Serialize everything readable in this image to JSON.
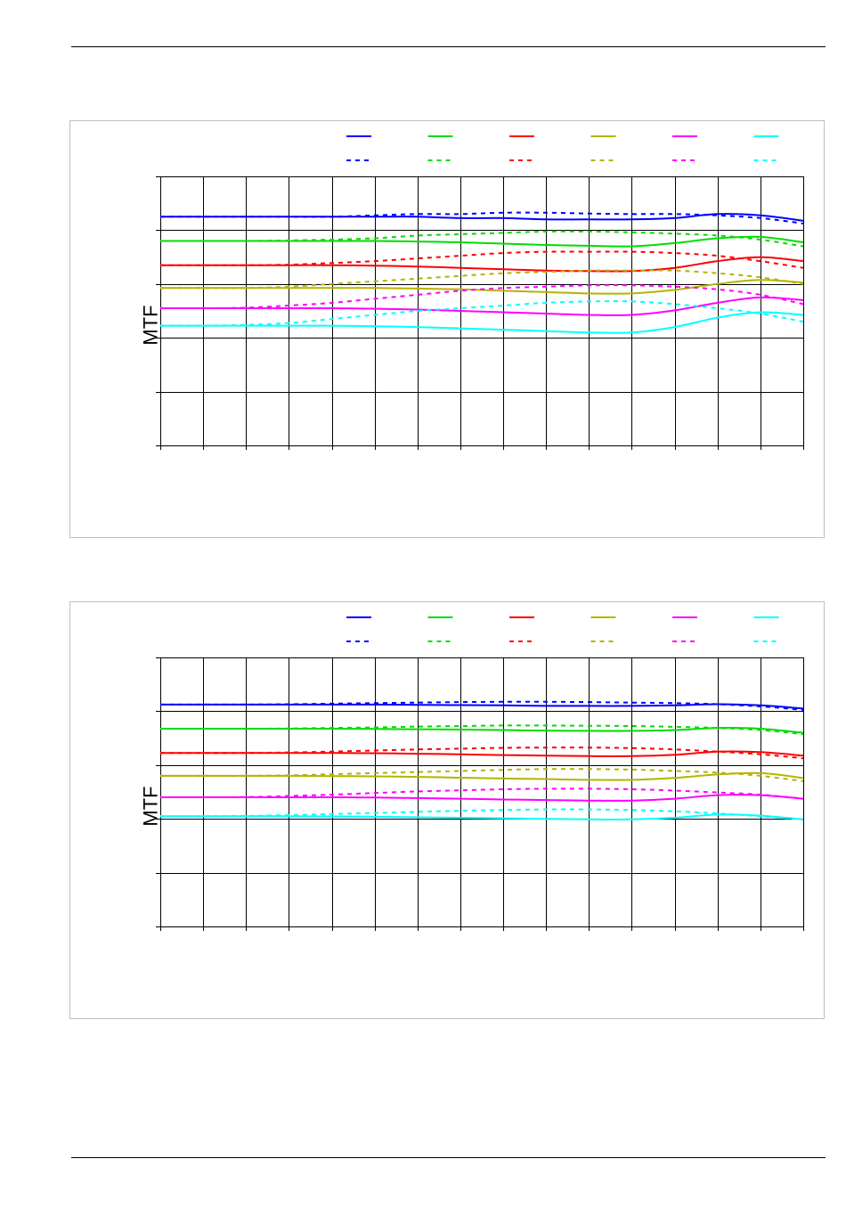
{
  "chart_data": [
    {
      "type": "line",
      "title": "",
      "xlabel": "",
      "ylabel": "MTF",
      "ylim": [
        0,
        1
      ],
      "grid": true,
      "legend_placement": "top",
      "x": [
        0,
        0.5,
        1,
        1.5,
        2,
        2.5,
        3,
        3.5,
        4,
        4.5,
        5,
        5.5,
        6,
        6.5,
        7,
        7.5
      ],
      "series": [
        {
          "color": "#0000ff",
          "dashed": false,
          "values": [
            0.85,
            0.85,
            0.85,
            0.85,
            0.85,
            0.85,
            0.85,
            0.845,
            0.845,
            0.84,
            0.84,
            0.84,
            0.845,
            0.86,
            0.855,
            0.835
          ]
        },
        {
          "color": "#0000ff",
          "dashed": true,
          "values": [
            0.85,
            0.85,
            0.85,
            0.85,
            0.85,
            0.855,
            0.86,
            0.86,
            0.865,
            0.865,
            0.862,
            0.86,
            0.86,
            0.855,
            0.845,
            0.825
          ]
        },
        {
          "color": "#00dd00",
          "dashed": false,
          "values": [
            0.76,
            0.76,
            0.76,
            0.76,
            0.76,
            0.76,
            0.758,
            0.755,
            0.75,
            0.745,
            0.742,
            0.74,
            0.752,
            0.77,
            0.775,
            0.755
          ]
        },
        {
          "color": "#00dd00",
          "dashed": true,
          "values": [
            0.76,
            0.76,
            0.76,
            0.762,
            0.765,
            0.77,
            0.78,
            0.785,
            0.79,
            0.795,
            0.795,
            0.792,
            0.787,
            0.78,
            0.765,
            0.74
          ]
        },
        {
          "color": "#ff0000",
          "dashed": false,
          "values": [
            0.67,
            0.67,
            0.67,
            0.67,
            0.67,
            0.668,
            0.665,
            0.66,
            0.655,
            0.65,
            0.648,
            0.648,
            0.66,
            0.685,
            0.7,
            0.685
          ]
        },
        {
          "color": "#ff0000",
          "dashed": true,
          "values": [
            0.67,
            0.67,
            0.67,
            0.672,
            0.678,
            0.685,
            0.695,
            0.705,
            0.715,
            0.72,
            0.72,
            0.72,
            0.715,
            0.705,
            0.685,
            0.66
          ]
        },
        {
          "color": "#b4b400",
          "dashed": false,
          "values": [
            0.585,
            0.585,
            0.585,
            0.585,
            0.585,
            0.585,
            0.583,
            0.58,
            0.575,
            0.57,
            0.565,
            0.565,
            0.578,
            0.6,
            0.615,
            0.605
          ]
        },
        {
          "color": "#b4b400",
          "dashed": true,
          "values": [
            0.585,
            0.585,
            0.585,
            0.59,
            0.6,
            0.61,
            0.62,
            0.63,
            0.64,
            0.645,
            0.65,
            0.65,
            0.65,
            0.64,
            0.625,
            0.6
          ]
        },
        {
          "color": "#ff00ff",
          "dashed": false,
          "values": [
            0.51,
            0.51,
            0.51,
            0.51,
            0.51,
            0.508,
            0.505,
            0.5,
            0.495,
            0.49,
            0.485,
            0.485,
            0.502,
            0.53,
            0.55,
            0.54
          ]
        },
        {
          "color": "#ff00ff",
          "dashed": true,
          "values": [
            0.51,
            0.51,
            0.512,
            0.52,
            0.53,
            0.545,
            0.56,
            0.575,
            0.585,
            0.59,
            0.595,
            0.595,
            0.59,
            0.58,
            0.56,
            0.525
          ]
        },
        {
          "color": "#00ffff",
          "dashed": false,
          "values": [
            0.445,
            0.445,
            0.445,
            0.445,
            0.445,
            0.443,
            0.44,
            0.435,
            0.43,
            0.425,
            0.42,
            0.42,
            0.44,
            0.475,
            0.495,
            0.485
          ]
        },
        {
          "color": "#00ffff",
          "dashed": true,
          "values": [
            0.445,
            0.445,
            0.448,
            0.455,
            0.47,
            0.485,
            0.5,
            0.51,
            0.52,
            0.53,
            0.535,
            0.535,
            0.525,
            0.51,
            0.49,
            0.46
          ]
        }
      ]
    },
    {
      "type": "line",
      "title": "",
      "xlabel": "",
      "ylabel": "MTF",
      "ylim": [
        0,
        1
      ],
      "grid": true,
      "legend_placement": "top",
      "x": [
        0,
        0.5,
        1,
        1.5,
        2,
        2.5,
        3,
        3.5,
        4,
        4.5,
        5,
        5.5,
        6,
        6.5,
        7,
        7.5
      ],
      "series": [
        {
          "color": "#0000ff",
          "dashed": false,
          "values": [
            0.825,
            0.825,
            0.825,
            0.825,
            0.825,
            0.825,
            0.824,
            0.823,
            0.822,
            0.82,
            0.82,
            0.82,
            0.822,
            0.826,
            0.822,
            0.81
          ]
        },
        {
          "color": "#0000ff",
          "dashed": true,
          "values": [
            0.825,
            0.825,
            0.825,
            0.826,
            0.828,
            0.83,
            0.832,
            0.834,
            0.835,
            0.835,
            0.834,
            0.832,
            0.83,
            0.826,
            0.818,
            0.805
          ]
        },
        {
          "color": "#00dd00",
          "dashed": false,
          "values": [
            0.735,
            0.735,
            0.735,
            0.735,
            0.735,
            0.734,
            0.733,
            0.732,
            0.73,
            0.728,
            0.727,
            0.727,
            0.73,
            0.738,
            0.735,
            0.72
          ]
        },
        {
          "color": "#00dd00",
          "dashed": true,
          "values": [
            0.735,
            0.735,
            0.735,
            0.736,
            0.738,
            0.74,
            0.743,
            0.745,
            0.747,
            0.747,
            0.746,
            0.745,
            0.742,
            0.738,
            0.73,
            0.715
          ]
        },
        {
          "color": "#ff0000",
          "dashed": false,
          "values": [
            0.645,
            0.645,
            0.645,
            0.645,
            0.645,
            0.644,
            0.642,
            0.64,
            0.637,
            0.635,
            0.633,
            0.633,
            0.638,
            0.65,
            0.648,
            0.635
          ]
        },
        {
          "color": "#ff0000",
          "dashed": true,
          "values": [
            0.645,
            0.645,
            0.645,
            0.647,
            0.65,
            0.654,
            0.658,
            0.661,
            0.664,
            0.665,
            0.665,
            0.663,
            0.658,
            0.65,
            0.64,
            0.625
          ]
        },
        {
          "color": "#b4b400",
          "dashed": false,
          "values": [
            0.56,
            0.56,
            0.56,
            0.56,
            0.559,
            0.558,
            0.556,
            0.553,
            0.55,
            0.548,
            0.545,
            0.545,
            0.552,
            0.565,
            0.57,
            0.552
          ]
        },
        {
          "color": "#b4b400",
          "dashed": true,
          "values": [
            0.56,
            0.56,
            0.56,
            0.562,
            0.566,
            0.57,
            0.574,
            0.578,
            0.582,
            0.585,
            0.585,
            0.583,
            0.578,
            0.572,
            0.56,
            0.54
          ]
        },
        {
          "color": "#ff00ff",
          "dashed": false,
          "values": [
            0.48,
            0.48,
            0.48,
            0.48,
            0.48,
            0.479,
            0.477,
            0.475,
            0.472,
            0.47,
            0.468,
            0.468,
            0.475,
            0.488,
            0.488,
            0.475
          ]
        },
        {
          "color": "#ff00ff",
          "dashed": true,
          "values": [
            0.48,
            0.48,
            0.481,
            0.485,
            0.49,
            0.496,
            0.502,
            0.506,
            0.51,
            0.512,
            0.512,
            0.51,
            0.505,
            0.498,
            0.49,
            0.475
          ]
        },
        {
          "color": "#00ffff",
          "dashed": false,
          "values": [
            0.41,
            0.41,
            0.41,
            0.41,
            0.409,
            0.408,
            0.406,
            0.404,
            0.402,
            0.4,
            0.398,
            0.398,
            0.404,
            0.416,
            0.412,
            0.398
          ]
        },
        {
          "color": "#00ffff",
          "dashed": true,
          "values": [
            0.41,
            0.41,
            0.411,
            0.414,
            0.418,
            0.422,
            0.426,
            0.43,
            0.433,
            0.435,
            0.435,
            0.433,
            0.428,
            0.42,
            0.41,
            0.398
          ]
        }
      ]
    }
  ]
}
